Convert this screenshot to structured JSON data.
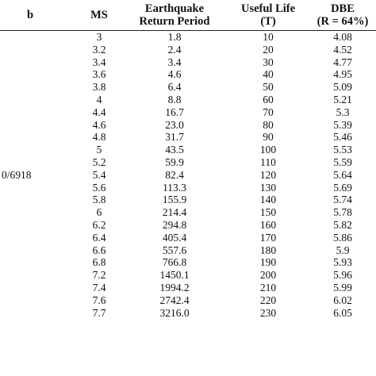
{
  "table": {
    "headers": [
      {
        "lines": [
          "b"
        ]
      },
      {
        "lines": [
          "MS"
        ]
      },
      {
        "lines": [
          "Earthquake",
          "Return Period"
        ]
      },
      {
        "lines": [
          "Useful Life",
          "(T)"
        ]
      },
      {
        "lines": [
          "DBE",
          "(R = 64%)"
        ]
      }
    ],
    "b_value": "0/6918",
    "rows": [
      [
        "3",
        "1.8",
        "10",
        "4.08"
      ],
      [
        "3.2",
        "2.4",
        "20",
        "4.52"
      ],
      [
        "3.4",
        "3.4",
        "30",
        "4.77"
      ],
      [
        "3.6",
        "4.6",
        "40",
        "4.95"
      ],
      [
        "3.8",
        "6.4",
        "50",
        "5.09"
      ],
      [
        "4",
        "8.8",
        "60",
        "5.21"
      ],
      [
        "4.4",
        "16.7",
        "70",
        "5.3"
      ],
      [
        "4.6",
        "23.0",
        "80",
        "5.39"
      ],
      [
        "4.8",
        "31.7",
        "90",
        "5.46"
      ],
      [
        "5",
        "43.5",
        "100",
        "5.53"
      ],
      [
        "5.2",
        "59.9",
        "110",
        "5.59"
      ],
      [
        "5.4",
        "82.4",
        "120",
        "5.64"
      ],
      [
        "5.6",
        "113.3",
        "130",
        "5.69"
      ],
      [
        "5.8",
        "155.9",
        "140",
        "5.74"
      ],
      [
        "6",
        "214.4",
        "150",
        "5.78"
      ],
      [
        "6.2",
        "294.8",
        "160",
        "5.82"
      ],
      [
        "6.4",
        "405.4",
        "170",
        "5.86"
      ],
      [
        "6.6",
        "557.6",
        "180",
        "5.9"
      ],
      [
        "6.8",
        "766.8",
        "190",
        "5.93"
      ],
      [
        "7.2",
        "1450.1",
        "200",
        "5.96"
      ],
      [
        "7.4",
        "1994.2",
        "210",
        "5.99"
      ],
      [
        "7.6",
        "2742.4",
        "220",
        "6.02"
      ],
      [
        "7.7",
        "3216.0",
        "230",
        "6.05"
      ]
    ]
  }
}
